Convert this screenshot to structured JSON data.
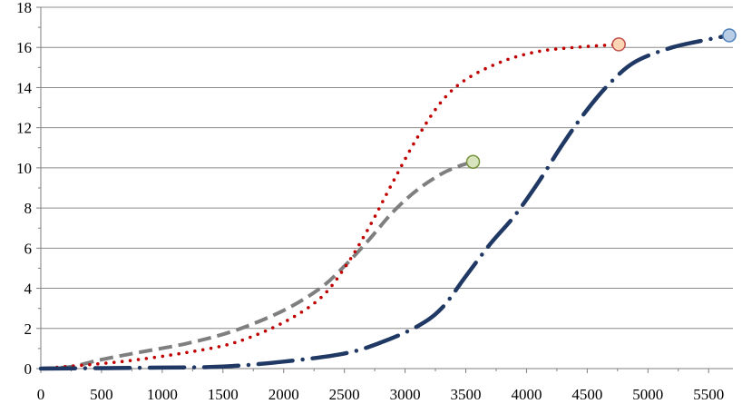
{
  "chart_data": {
    "type": "line",
    "title": "",
    "xlabel": "",
    "ylabel": "",
    "xlim": [
      0,
      5700
    ],
    "ylim": [
      0,
      18
    ],
    "x_ticks": [
      0,
      500,
      1000,
      1500,
      2000,
      2500,
      3000,
      3500,
      4000,
      4500,
      5000,
      5500
    ],
    "y_ticks": [
      0,
      2,
      4,
      6,
      8,
      10,
      12,
      14,
      16,
      18
    ],
    "grid": "horizontal",
    "legend": "none",
    "colors": {
      "grid": "#8c8c8c",
      "axis": "#7f7f7f"
    },
    "series": [
      {
        "name": "gray dashed",
        "style": "dashed",
        "color": "#7f7f7f",
        "end_marker_color": "#d7e4bd",
        "end_marker_edge": "#77933c",
        "points": [
          [
            0,
            0
          ],
          [
            250,
            0.1
          ],
          [
            500,
            0.45
          ],
          [
            800,
            0.8
          ],
          [
            1200,
            1.25
          ],
          [
            1600,
            1.9
          ],
          [
            2000,
            2.9
          ],
          [
            2300,
            4.0
          ],
          [
            2500,
            5.1
          ],
          [
            2700,
            6.4
          ],
          [
            2900,
            7.8
          ],
          [
            3100,
            8.9
          ],
          [
            3300,
            9.7
          ],
          [
            3450,
            10.1
          ],
          [
            3560,
            10.3
          ]
        ]
      },
      {
        "name": "red dotted",
        "style": "dotted",
        "color": "#c00000",
        "end_marker_color": "#fcd5b5",
        "end_marker_edge": "#c0504d",
        "points": [
          [
            0,
            0
          ],
          [
            500,
            0.25
          ],
          [
            800,
            0.45
          ],
          [
            1200,
            0.8
          ],
          [
            1600,
            1.3
          ],
          [
            2000,
            2.3
          ],
          [
            2300,
            3.5
          ],
          [
            2500,
            5.0
          ],
          [
            2700,
            7.0
          ],
          [
            2900,
            9.3
          ],
          [
            3100,
            11.5
          ],
          [
            3300,
            13.3
          ],
          [
            3500,
            14.4
          ],
          [
            3800,
            15.3
          ],
          [
            4100,
            15.8
          ],
          [
            4400,
            16.0
          ],
          [
            4760,
            16.15
          ]
        ]
      },
      {
        "name": "navy dash-dot",
        "style": "dash-dot",
        "color": "#1f3864",
        "end_marker_color": "#b9cde5",
        "end_marker_edge": "#4f81bd",
        "points": [
          [
            0,
            0
          ],
          [
            1000,
            0.05
          ],
          [
            1500,
            0.1
          ],
          [
            2000,
            0.35
          ],
          [
            2500,
            0.75
          ],
          [
            2800,
            1.3
          ],
          [
            3100,
            2.1
          ],
          [
            3300,
            3.0
          ],
          [
            3500,
            4.6
          ],
          [
            3700,
            6.2
          ],
          [
            3900,
            7.6
          ],
          [
            4100,
            9.3
          ],
          [
            4300,
            11.2
          ],
          [
            4500,
            12.9
          ],
          [
            4700,
            14.3
          ],
          [
            4900,
            15.3
          ],
          [
            5200,
            16.0
          ],
          [
            5500,
            16.4
          ],
          [
            5670,
            16.6
          ]
        ]
      }
    ]
  }
}
